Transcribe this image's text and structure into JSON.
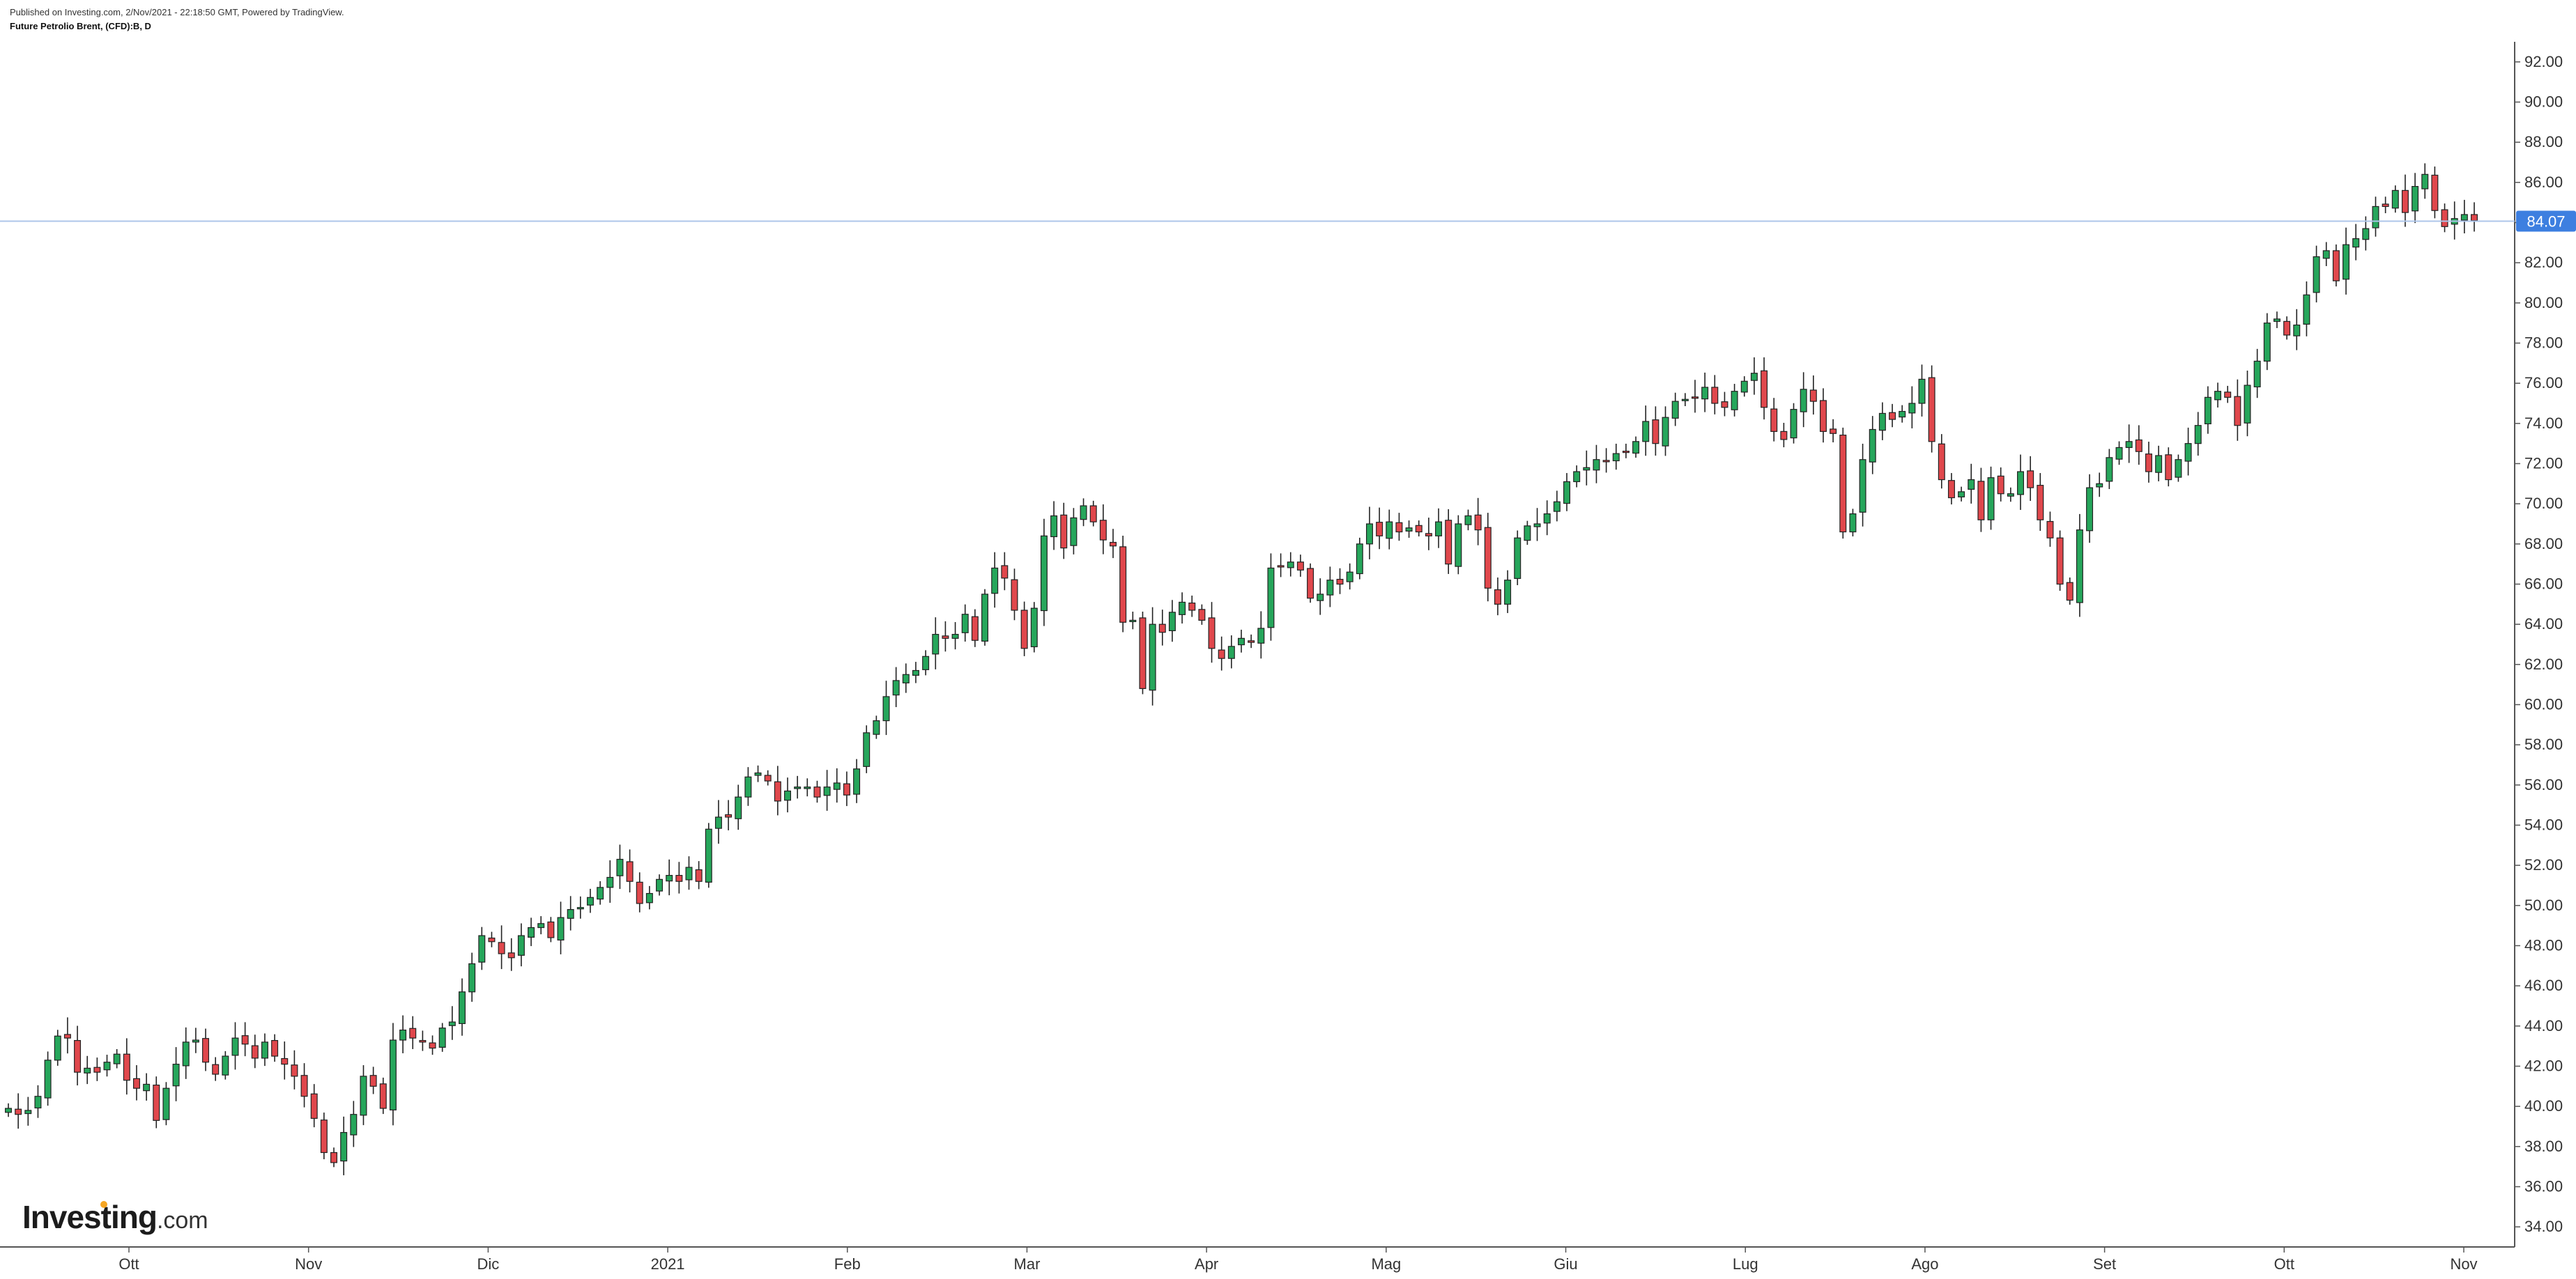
{
  "header": {
    "published": "Published on Investing.com, 2/Nov/2021 - 22:18:50 GMT, Powered by TradingView.",
    "instrument": "Future Petrolio Brent, (CFD):B, D"
  },
  "logo": {
    "brand": "Investing",
    "suffix": ".com"
  },
  "chart_data": {
    "type": "candlestick",
    "title": "Future Petrolio Brent, (CFD):B, D",
    "ylim": [
      33,
      93
    ],
    "y_ticks": [
      "92.00",
      "90.00",
      "88.00",
      "86.00",
      "84.00",
      "82.00",
      "80.00",
      "78.00",
      "76.00",
      "74.00",
      "72.00",
      "70.00",
      "68.00",
      "66.00",
      "64.00",
      "62.00",
      "60.00",
      "58.00",
      "56.00",
      "54.00",
      "52.00",
      "50.00",
      "48.00",
      "46.00",
      "44.00",
      "42.00",
      "40.00",
      "38.00",
      "36.00",
      "34.00"
    ],
    "x_ticks": [
      "Ott",
      "Nov",
      "Dic",
      "2021",
      "Feb",
      "Mar",
      "Apr",
      "Mag",
      "Giu",
      "Lug",
      "Ago",
      "Set",
      "Ott",
      "Nov"
    ],
    "last_price": "84.07",
    "colors": {
      "up": "#26a65b",
      "down": "#e0474c",
      "wick": "#222222",
      "price_line": "#aec6ea",
      "price_tag": "#3d7fe0"
    },
    "series": [
      {
        "values": [
          39.9,
          39.6,
          39.8,
          40.5,
          42.3,
          43.5,
          43.4,
          41.7,
          41.9,
          41.7,
          42.2,
          42.6,
          41.3,
          40.9,
          41.1,
          39.3,
          40.9,
          42.1,
          43.2,
          43.3,
          42.2,
          41.6,
          42.5,
          43.4,
          43.1,
          42.4,
          43.2,
          42.5,
          42.1,
          41.5,
          40.5,
          39.4,
          37.7,
          37.2,
          38.7,
          39.6,
          41.5,
          41.0,
          39.9,
          43.3,
          43.8,
          43.4,
          43.2,
          42.9,
          43.9,
          44.2,
          45.7,
          47.1,
          48.5,
          48.2,
          47.6,
          47.4,
          48.5,
          48.9,
          49.1,
          48.4,
          49.4,
          49.8,
          49.9,
          50.4,
          50.9,
          51.4,
          52.3,
          51.2,
          50.1,
          50.6,
          51.3,
          51.5,
          51.2,
          51.9,
          51.2,
          53.8,
          54.4,
          54.4,
          55.4,
          56.4,
          56.6,
          56.2,
          55.2,
          55.7,
          55.9,
          55.9,
          55.4,
          55.9,
          56.1,
          55.5,
          56.8,
          58.6,
          59.2,
          60.4,
          61.2,
          61.5,
          61.7,
          62.4,
          63.5,
          63.3,
          63.5,
          64.5,
          63.2,
          65.5,
          66.8,
          66.3,
          64.7,
          62.8,
          64.8,
          68.4,
          69.4,
          67.8,
          69.3,
          69.9,
          69.1,
          68.2,
          67.9,
          64.1,
          64.2,
          60.8,
          64.0,
          63.6,
          64.6,
          65.1,
          64.7,
          64.2,
          62.8,
          62.3,
          62.9,
          63.3,
          63.1,
          63.8,
          66.8,
          66.9,
          67.1,
          66.7,
          65.3,
          65.5,
          66.2,
          66.0,
          66.6,
          68.0,
          69.0,
          68.4,
          69.1,
          68.6,
          68.8,
          68.6,
          68.4,
          69.1,
          67.0,
          69.0,
          69.4,
          68.7,
          65.8,
          65.0,
          66.2,
          68.3,
          68.9,
          69.0,
          69.5,
          70.1,
          71.1,
          71.6,
          71.8,
          72.2,
          72.1,
          72.5,
          72.6,
          73.1,
          74.1,
          73.0,
          74.3,
          75.1,
          75.2,
          75.3,
          75.8,
          75.0,
          74.8,
          75.6,
          76.1,
          76.5,
          74.8,
          73.6,
          73.2,
          74.7,
          75.7,
          75.1,
          73.6,
          73.5,
          68.6,
          69.5,
          72.2,
          73.7,
          74.5,
          74.2,
          74.6,
          75.0,
          76.2,
          73.1,
          71.2,
          70.3,
          70.6,
          71.2,
          69.2,
          71.3,
          70.5,
          70.5,
          71.6,
          70.8,
          69.2,
          68.3,
          66.0,
          65.2,
          68.7,
          70.8,
          71.0,
          72.3,
          72.8,
          73.1,
          72.6,
          71.6,
          72.4,
          71.2,
          72.2,
          73.0,
          73.9,
          75.3,
          75.6,
          75.3,
          73.9,
          75.9,
          77.1,
          79.0,
          79.2,
          78.4,
          78.9,
          80.4,
          82.3,
          82.6,
          81.1,
          82.9,
          83.2,
          83.7,
          84.8,
          84.8,
          85.6,
          84.5,
          85.8,
          86.4,
          84.6,
          83.8,
          84.2,
          84.4,
          84.1
        ]
      }
    ]
  }
}
